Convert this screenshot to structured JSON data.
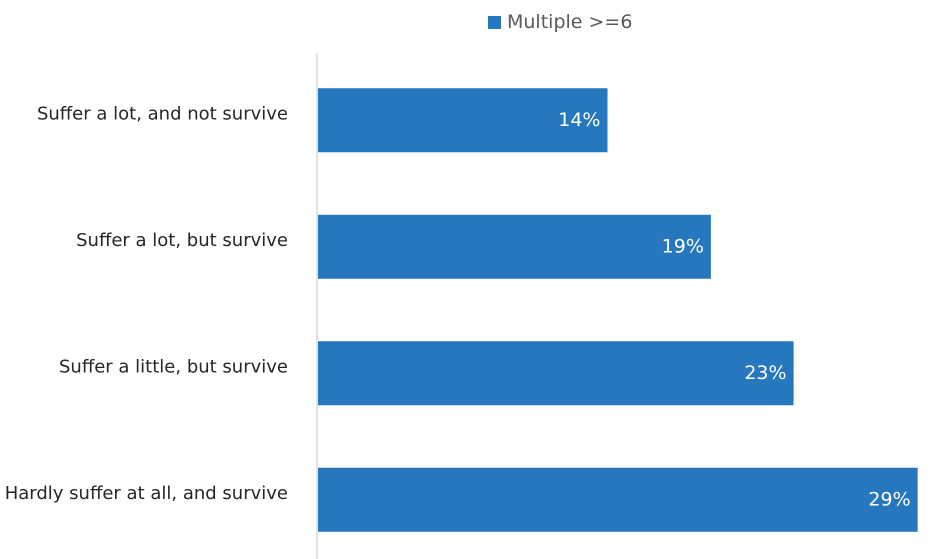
{
  "legend": {
    "label": "Multiple >=6"
  },
  "colors": {
    "bar": "#2777BE",
    "axis": "#D9D9D9"
  },
  "chart_data": {
    "type": "bar",
    "orientation": "horizontal",
    "categories": [
      "Suffer a lot, and not survive",
      "Suffer a lot, but survive",
      "Suffer a little, but survive",
      "Hardly suffer at all, and survive"
    ],
    "series": [
      {
        "name": "Multiple >=6",
        "values": [
          14,
          19,
          23,
          29
        ],
        "labels": [
          "14%",
          "19%",
          "23%",
          "29%"
        ]
      }
    ],
    "xlim": [
      0,
      29.5
    ],
    "grid": false,
    "legend_position": "top"
  }
}
